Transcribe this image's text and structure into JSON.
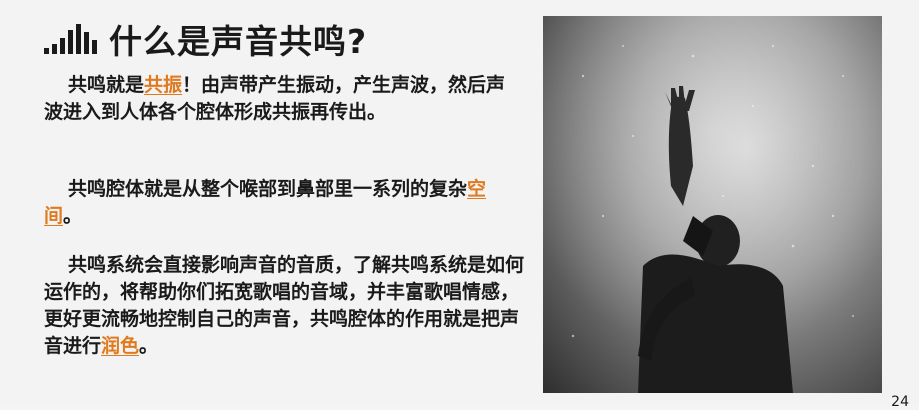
{
  "slide": {
    "title": "什么是声音共鸣?",
    "para1": {
      "before": "共鸣就是",
      "highlight": "共振",
      "after": "！由声带产生振动，产生声波，然后声波进入到人体各个腔体形成共振再传出。"
    },
    "para2": {
      "before": "共鸣腔体就是从整个喉部到鼻部里一系列的复杂",
      "highlight": "空间",
      "after": "。"
    },
    "para3": {
      "before": "共鸣系统会直接影响声音的音质，了解共鸣系统是如何运作的，将帮助你们拓宽歌唱的音域，并丰富歌唱情感，更好更流畅地控制自己的声音，共鸣腔体的作用就是把声音进行",
      "highlight": "润色",
      "after": "。"
    },
    "highlight_color": "#e07a1f",
    "page_number": "24"
  },
  "icons": {
    "logo": "sound-bars-icon"
  }
}
